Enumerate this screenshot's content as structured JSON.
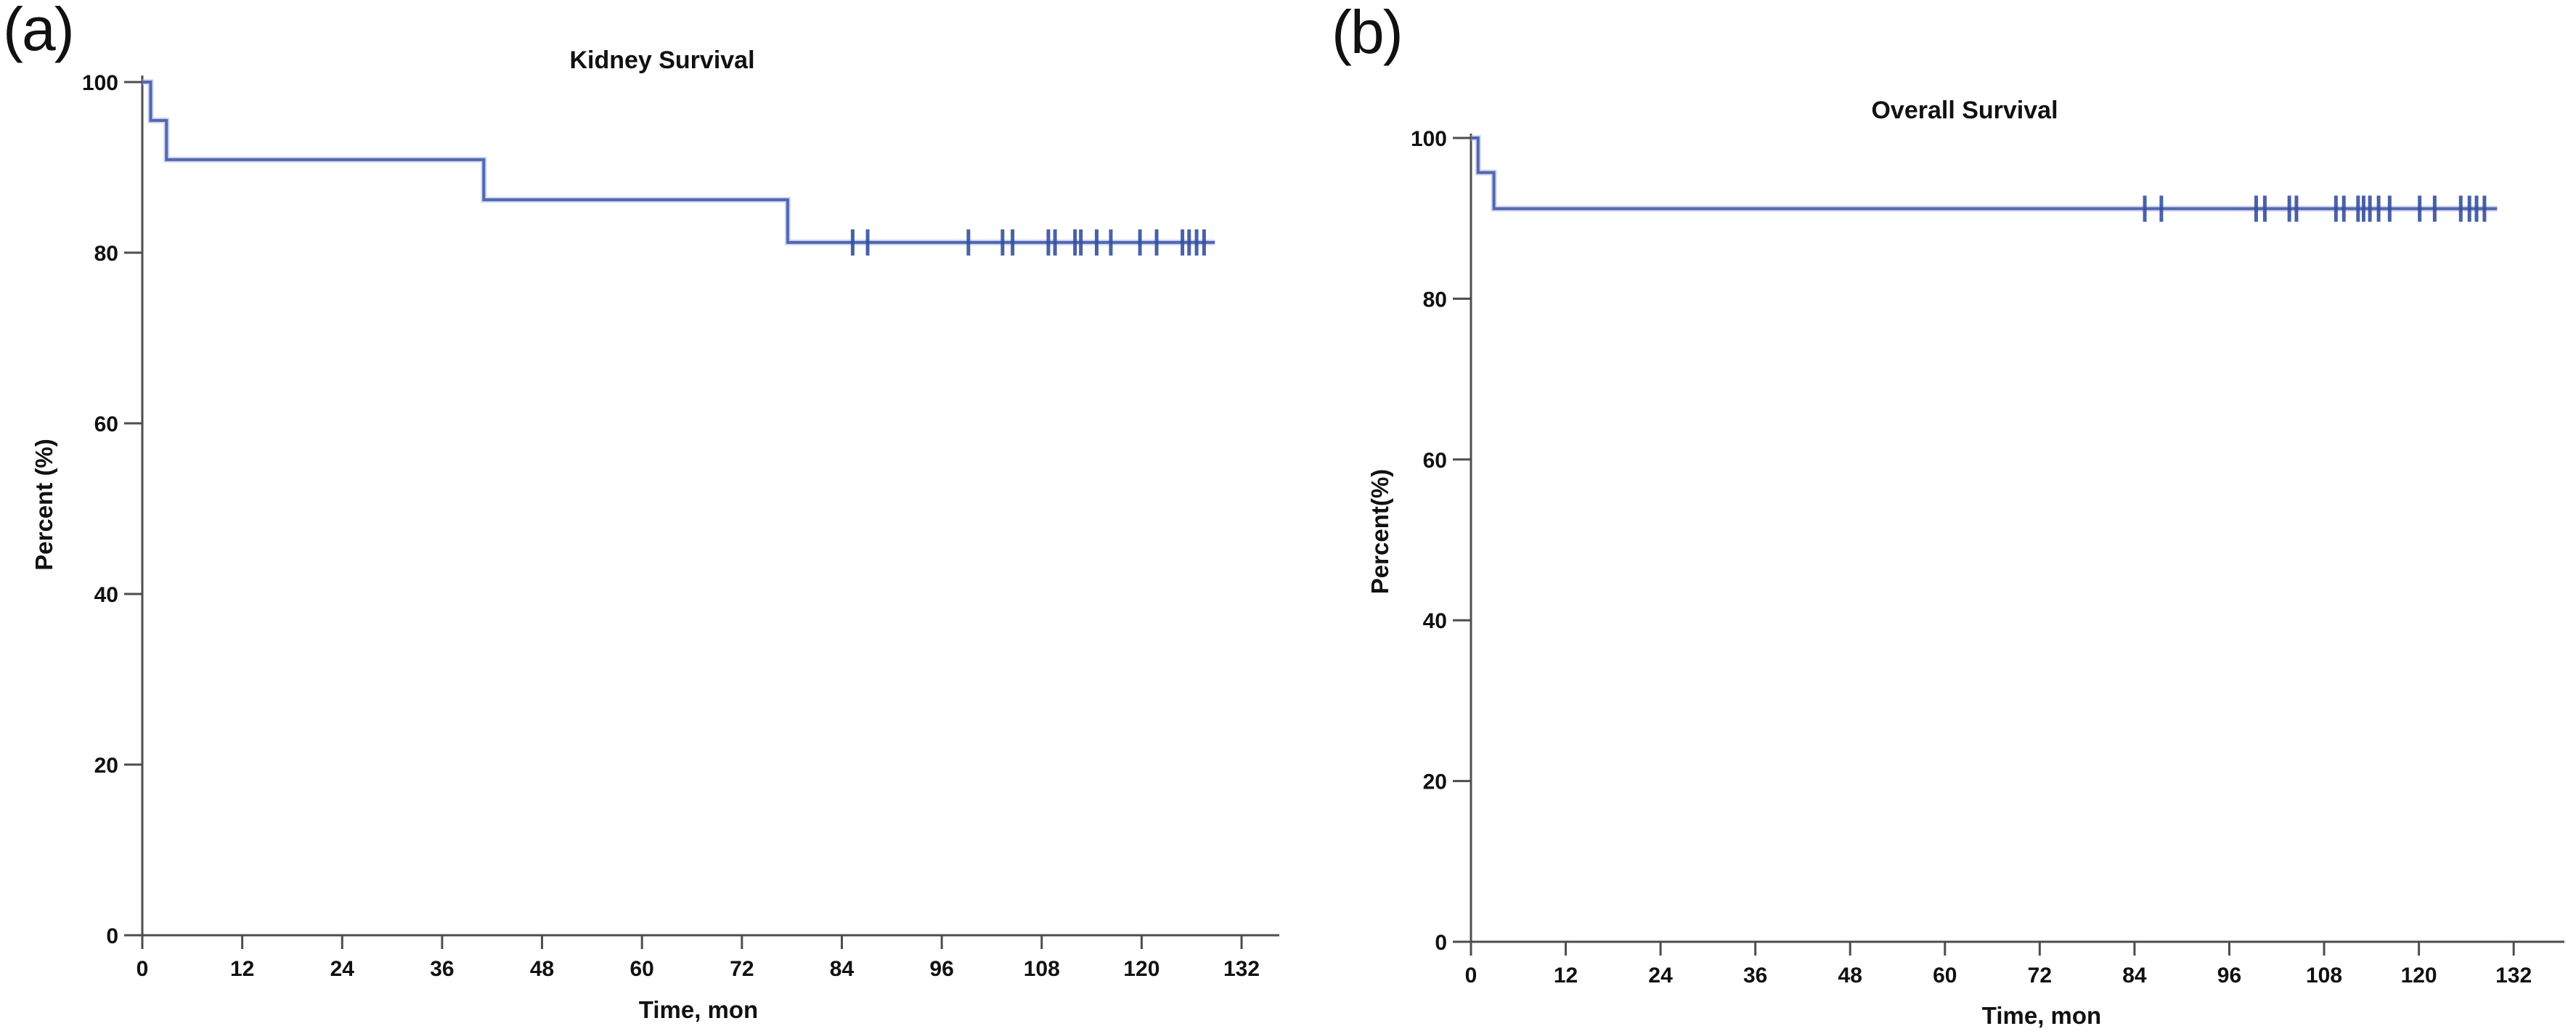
{
  "figure": {
    "panel_a_label": "(a)",
    "panel_b_label": "(b)"
  },
  "colors": {
    "curve": "#5167b4",
    "curve_halo": "#aab6e0",
    "censor": "#35509f",
    "axis": "#4d4d4d",
    "text": "#111111"
  },
  "chart_data": [
    {
      "type": "line",
      "panel": "a",
      "title": "Kidney Survival",
      "xlabel": "Time, mon",
      "ylabel": "Percent (%)",
      "x_ticks": [
        0,
        12,
        24,
        36,
        48,
        60,
        72,
        84,
        96,
        108,
        120,
        132
      ],
      "y_ticks": [
        0,
        20,
        40,
        60,
        80,
        100
      ],
      "xlim": [
        0,
        137
      ],
      "ylim": [
        0,
        100
      ],
      "grid": false,
      "legend": "none",
      "series": [
        {
          "name": "kidney-survival",
          "steps": [
            [
              0,
              100
            ],
            [
              1.0,
              95.5
            ],
            [
              2.9,
              90.9
            ],
            [
              41,
              86.2
            ],
            [
              77.5,
              81.2
            ]
          ],
          "end_x": 128.8,
          "censor_y": 81.2,
          "censors": [
            85.3,
            87.1,
            99.2,
            103.3,
            104.5,
            108.8,
            109.6,
            112.0,
            112.7,
            114.6,
            116.3,
            119.8,
            121.8,
            124.9,
            125.7,
            126.6,
            127.5
          ]
        }
      ]
    },
    {
      "type": "line",
      "panel": "b",
      "title": "Overall Survival",
      "xlabel": "Time, mon",
      "ylabel": "Percent(%)",
      "x_ticks": [
        0,
        12,
        24,
        36,
        48,
        60,
        72,
        84,
        96,
        108,
        120,
        132
      ],
      "y_ticks": [
        0,
        20,
        40,
        60,
        80,
        100
      ],
      "xlim": [
        0,
        138
      ],
      "ylim": [
        0,
        100
      ],
      "grid": false,
      "legend": "none",
      "series": [
        {
          "name": "overall-survival",
          "steps": [
            [
              0,
              100
            ],
            [
              0.9,
              95.7
            ],
            [
              2.9,
              91.2
            ]
          ],
          "end_x": 129.9,
          "censor_y": 91.2,
          "censors": [
            85.3,
            87.4,
            99.4,
            100.5,
            103.6,
            104.5,
            109.5,
            110.5,
            112.3,
            113.0,
            113.8,
            114.9,
            116.3,
            120.1,
            122.0,
            125.3,
            126.4,
            127.3,
            128.3
          ]
        }
      ]
    }
  ]
}
